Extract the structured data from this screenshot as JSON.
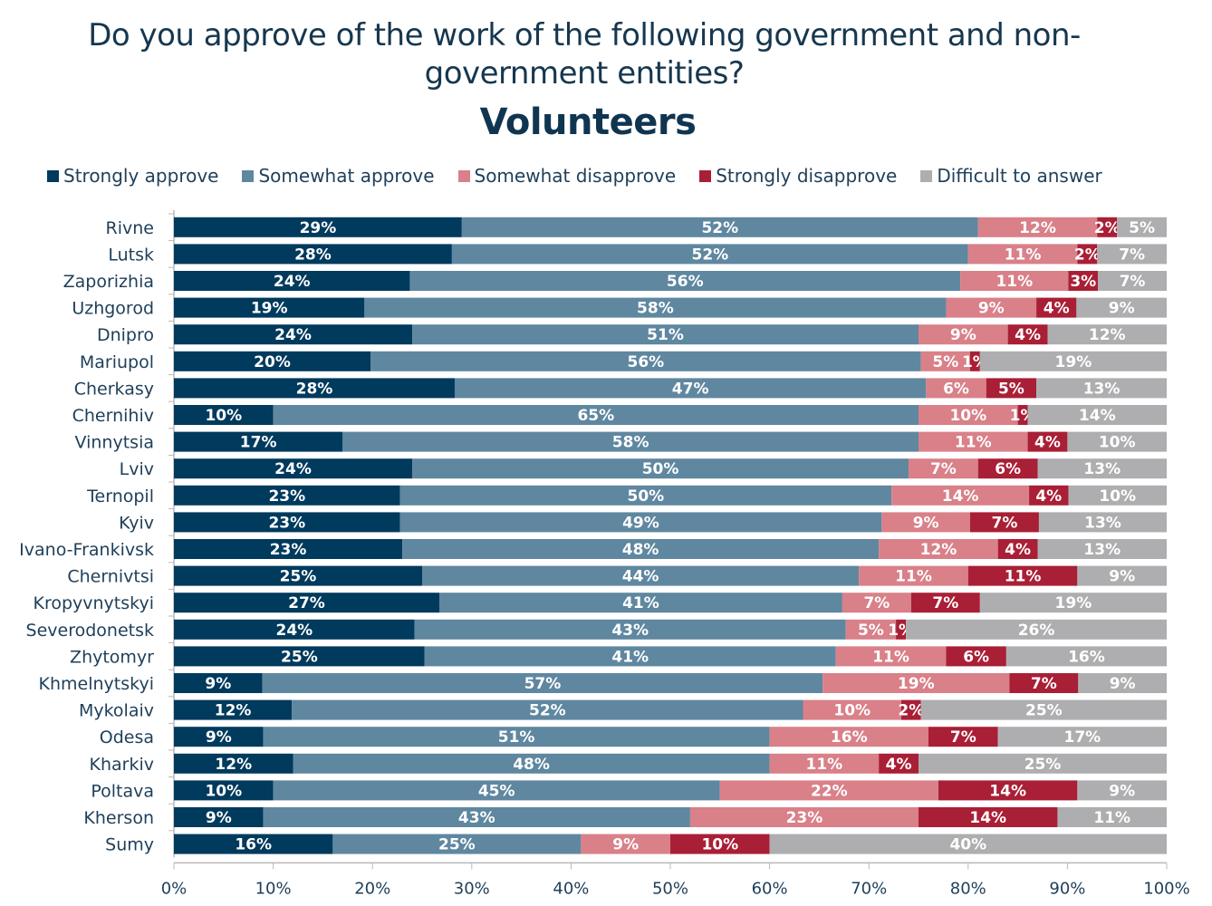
{
  "title": "Do you approve of the work of the following government and non-government entities?",
  "title_lines": [
    "Do you approve of the work of the following government and non-",
    "government entities?"
  ],
  "subtitle": "Volunteers",
  "chart_data": {
    "type": "bar",
    "orientation": "horizontal",
    "stacked": true,
    "title": "Do you approve of the work of the following government and non-government entities?",
    "subtitle": "Volunteers",
    "xlabel": "",
    "ylabel": "",
    "xlim": [
      0,
      100
    ],
    "x_ticks": [
      "0%",
      "10%",
      "20%",
      "30%",
      "40%",
      "50%",
      "60%",
      "70%",
      "80%",
      "90%",
      "100%"
    ],
    "grid": false,
    "legend_position": "top",
    "categories": [
      "Rivne",
      "Lutsk",
      "Zaporizhia",
      "Uzhgorod",
      "Dnipro",
      "Mariupol",
      "Cherkasy",
      "Chernihiv",
      "Vinnytsia",
      "Lviv",
      "Ternopil",
      "Kyiv",
      "Ivano-Frankivsk",
      "Chernivtsi",
      "Kropyvnytskyi",
      "Severodonetsk",
      "Zhytomyr",
      "Khmelnytskyi",
      "Mykolaiv",
      "Odesa",
      "Kharkiv",
      "Poltava",
      "Kherson",
      "Sumy"
    ],
    "series": [
      {
        "name": "Strongly approve",
        "color": "#003a5d",
        "values": [
          29,
          28,
          24,
          19,
          24,
          20,
          28,
          10,
          17,
          24,
          23,
          23,
          23,
          25,
          27,
          24,
          25,
          9,
          12,
          9,
          12,
          10,
          9,
          16
        ]
      },
      {
        "name": "Somewhat approve",
        "color": "#5f87a0",
        "values": [
          52,
          52,
          56,
          58,
          51,
          56,
          47,
          65,
          58,
          50,
          50,
          49,
          48,
          44,
          41,
          43,
          41,
          57,
          52,
          51,
          48,
          45,
          43,
          25
        ]
      },
      {
        "name": "Somewhat disapprove",
        "color": "#d98089",
        "values": [
          12,
          11,
          11,
          9,
          9,
          5,
          6,
          10,
          11,
          7,
          14,
          9,
          12,
          11,
          7,
          5,
          11,
          19,
          10,
          16,
          11,
          22,
          23,
          9
        ]
      },
      {
        "name": "Strongly disapprove",
        "color": "#a91f36",
        "values": [
          2,
          2,
          3,
          4,
          4,
          1,
          5,
          1,
          4,
          6,
          4,
          7,
          4,
          11,
          7,
          1,
          6,
          7,
          2,
          7,
          4,
          14,
          14,
          10
        ]
      },
      {
        "name": "Difficult to answer",
        "color": "#aeaeb0",
        "values": [
          5,
          7,
          7,
          9,
          12,
          19,
          13,
          14,
          10,
          13,
          10,
          13,
          13,
          9,
          19,
          26,
          16,
          9,
          25,
          17,
          25,
          9,
          11,
          40
        ]
      }
    ]
  }
}
